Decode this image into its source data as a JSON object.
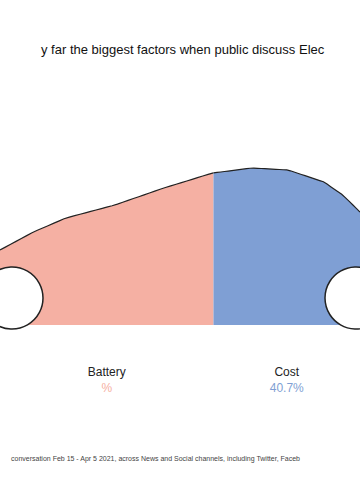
{
  "chart_data": {
    "type": "bar",
    "orientation": "horizontal",
    "stacked": true,
    "title": "y far the biggest factors when public discuss Elec",
    "annotations": [
      "conversation Feb 15 - Apr 5 2021, across News and Social channels, including Twitter, Faceb"
    ],
    "categories": [
      "Battery",
      "Cost"
    ],
    "values": [
      59.3,
      40.7
    ],
    "value_labels": [
      "%",
      "40.7%"
    ],
    "colors": [
      "#f5b0a3",
      "#7f9fd4"
    ],
    "data_labels": true,
    "tick_labels": false,
    "grid": false
  }
}
